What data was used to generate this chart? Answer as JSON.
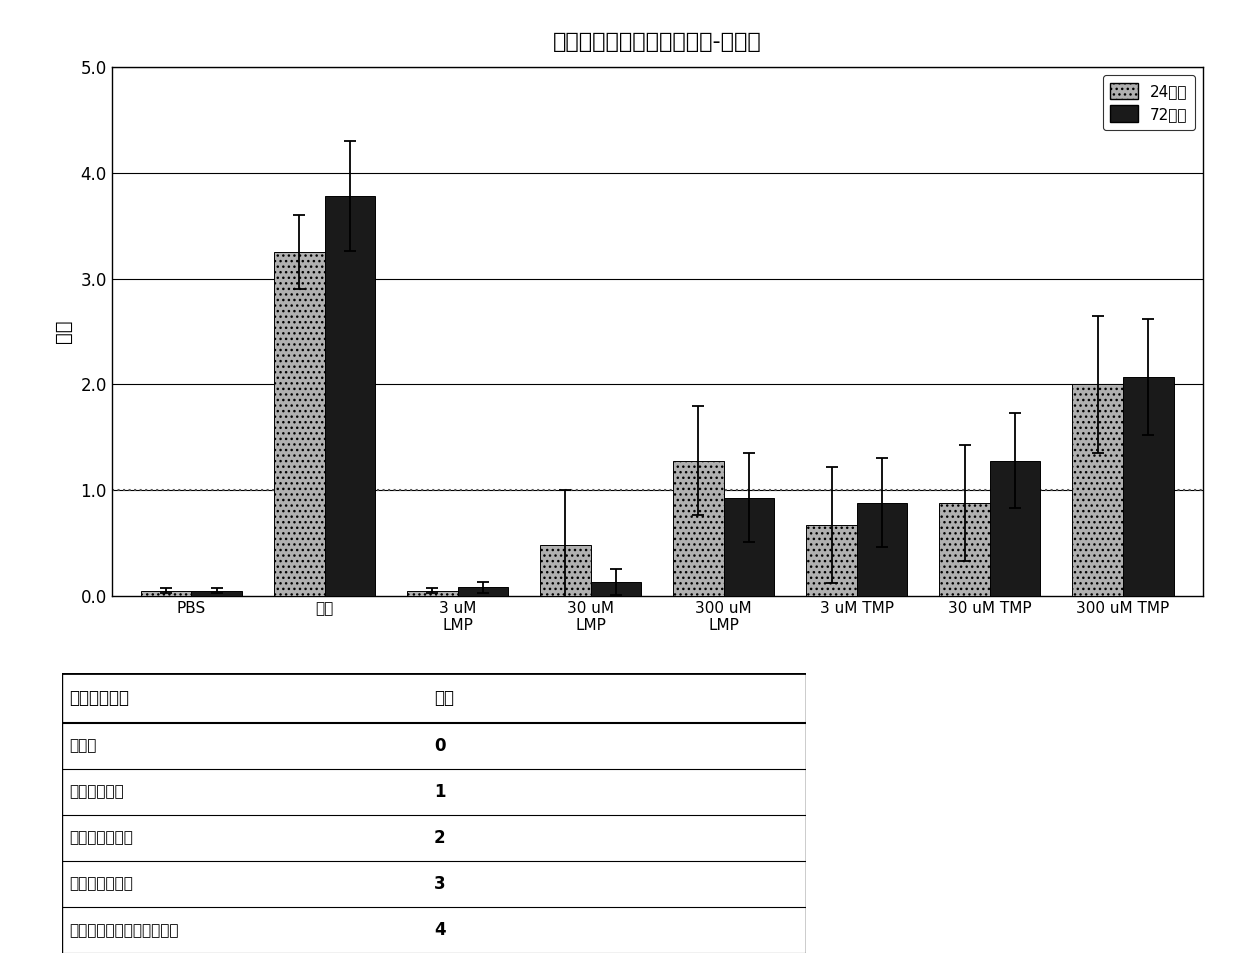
{
  "title": "唷啰衍生物的皮肤刺激实验-磨损区",
  "ylabel": "红斑",
  "categories": [
    "PBS",
    "甲酸",
    "3 uM\nLMP",
    "30 uM\nLMP",
    "300 uM\nLMP",
    "3 uM TMP",
    "30 uM TMP",
    "300 uM TMP"
  ],
  "values_24h": [
    0.05,
    3.25,
    0.05,
    0.48,
    1.28,
    0.67,
    0.88,
    2.0
  ],
  "values_72h": [
    0.05,
    3.78,
    0.08,
    0.13,
    0.93,
    0.88,
    1.28,
    2.07
  ],
  "errors_24h": [
    0.02,
    0.35,
    0.02,
    0.52,
    0.52,
    0.55,
    0.55,
    0.65
  ],
  "errors_72h": [
    0.02,
    0.52,
    0.05,
    0.12,
    0.42,
    0.42,
    0.45,
    0.55
  ],
  "ylim": [
    0.0,
    5.0
  ],
  "yticks": [
    0.0,
    1.0,
    2.0,
    3.0,
    4.0,
    5.0
  ],
  "ytick_labels": [
    "0.0",
    "1.0",
    "2.0",
    "3.0",
    "4.0",
    "5.0"
  ],
  "hline_y": 1.0,
  "color_24h": "#b0b0b0",
  "color_72h": "#1a1a1a",
  "legend_label_24h": "24小时",
  "legend_label_72h": "72小时",
  "background_color": "#ffffff",
  "table_header": [
    "皮肤红斑反应",
    "分数"
  ],
  "table_rows": [
    [
      "无红斑",
      "0"
    ],
    [
      "很轻微的红斑",
      "1"
    ],
    [
      "轮廓分明的红斑",
      "2"
    ],
    [
      "中度至重度红斑",
      "3"
    ],
    [
      "严重红斑到轻微的焦痂形成",
      "4"
    ]
  ]
}
